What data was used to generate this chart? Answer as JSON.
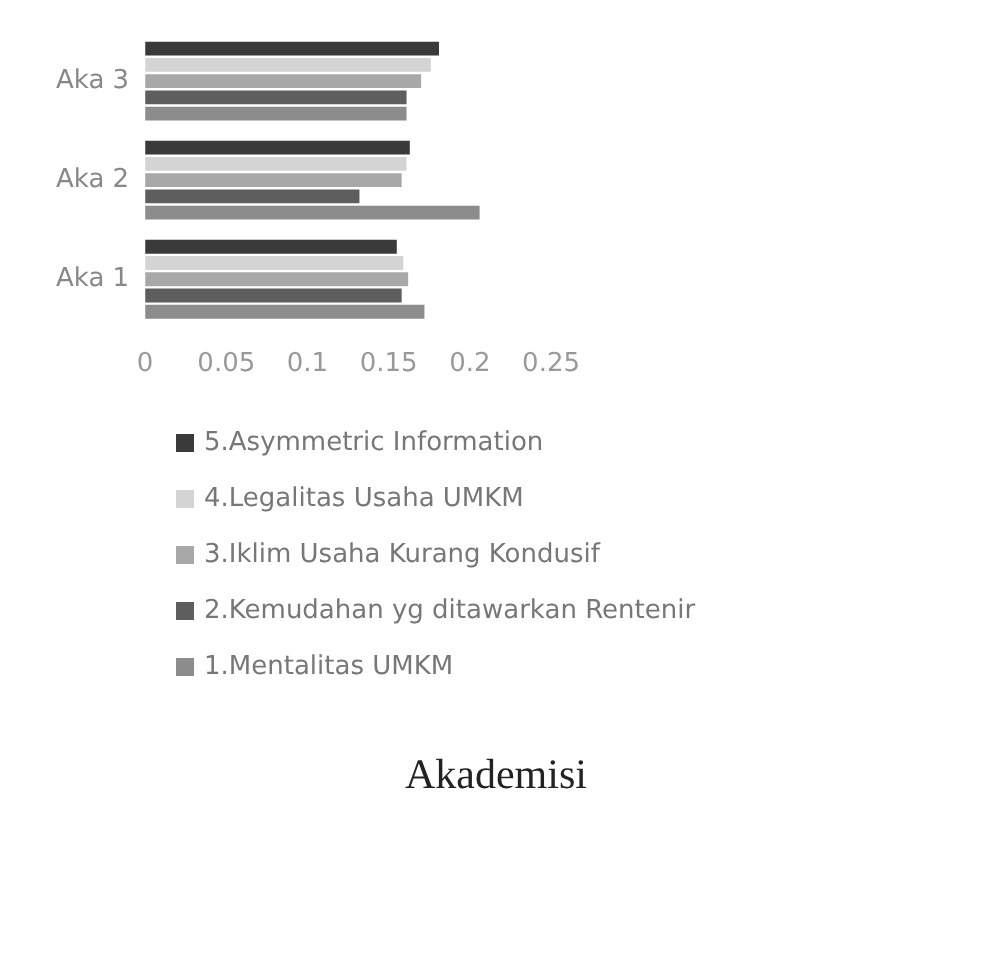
{
  "chart_data": {
    "type": "bar",
    "orientation": "horizontal",
    "title": "Akademisi",
    "categories": [
      "Aka 3",
      "Aka 2",
      "Aka 1"
    ],
    "series": [
      {
        "name": "5.Asymmetric Information",
        "color": "#3a3a3a",
        "values": [
          0.181,
          0.163,
          0.155
        ]
      },
      {
        "name": "4.Legalitas Usaha UMKM",
        "color": "#d4d4d4",
        "values": [
          0.176,
          0.161,
          0.159
        ]
      },
      {
        "name": "3.Iklim Usaha Kurang Kondusif",
        "color": "#a8a8a8",
        "values": [
          0.17,
          0.158,
          0.162
        ]
      },
      {
        "name": "2.Kemudahan yg ditawarkan Rentenir",
        "color": "#5e5e5e",
        "values": [
          0.161,
          0.132,
          0.158
        ]
      },
      {
        "name": "1.Mentalitas UMKM",
        "color": "#8c8c8c",
        "values": [
          0.161,
          0.206,
          0.172
        ]
      }
    ],
    "xlim": [
      0,
      0.25
    ],
    "xticks": [
      0,
      0.05,
      0.1,
      0.15,
      0.2,
      0.25
    ],
    "grid": false,
    "legend": "bottom"
  }
}
